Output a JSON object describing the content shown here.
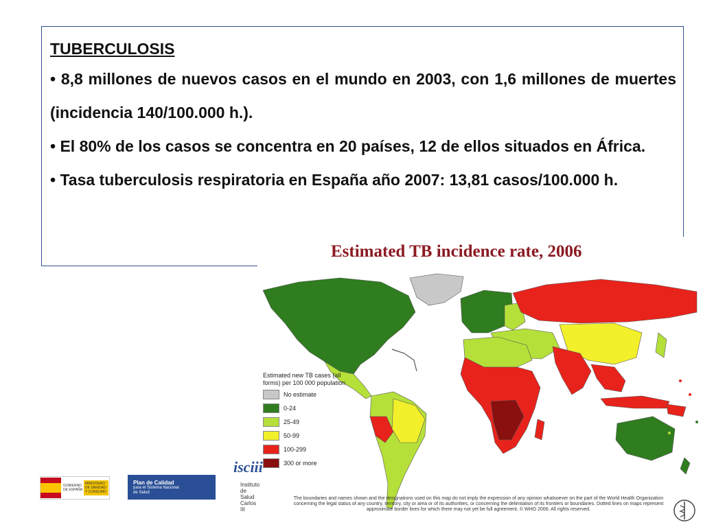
{
  "slide": {
    "heading": "TUBERCULOSIS",
    "bullets": [
      "• 8,8 millones de nuevos casos en el mundo en 2003, con 1,6 millones de muertes (incidencia 140/100.000 h.).",
      "• El 80% de los casos se concentra en 20 países, 12 de ellos situados en África.",
      "• Tasa tuberculosis respiratoria en España año 2007: 13,81 casos/100.000 h."
    ]
  },
  "map": {
    "title": "Estimated TB incidence rate, 2006",
    "legend_title": "Estimated new TB cases (all forms) per 100 000 population",
    "legend": [
      {
        "label": "No estimate",
        "color": "#c8c8c8"
      },
      {
        "label": "0-24",
        "color": "#2f7d1f"
      },
      {
        "label": "25-49",
        "color": "#b5e03a"
      },
      {
        "label": "50-99",
        "color": "#f2ef2b"
      },
      {
        "label": "100-299",
        "color": "#e8231c"
      },
      {
        "label": "300 or more",
        "color": "#8a0f0f"
      }
    ],
    "disclaimer": "The boundaries and names shown and the designations used on this map do not imply the expression of any opinion whatsoever on the part of the World Health Organization concerning the legal status of any country, territory, city or area or of its authorities, or concerning the delimitation of its frontiers or boundaries. Dotted lines on maps represent approximate border lines for which there may not yet be full agreement. © WHO 2006. All rights reserved."
  },
  "logos": {
    "gov": "GOBIERNO DE ESPAÑA",
    "ministry": "MINISTERIO DE SANIDAD Y CONSUMO",
    "plan_line1": "Plan de Calidad",
    "plan_line2": "para el Sistema Nacional de Salud",
    "isciii": "isciii",
    "isciii_text": "Instituto de Salud Carlos III"
  }
}
